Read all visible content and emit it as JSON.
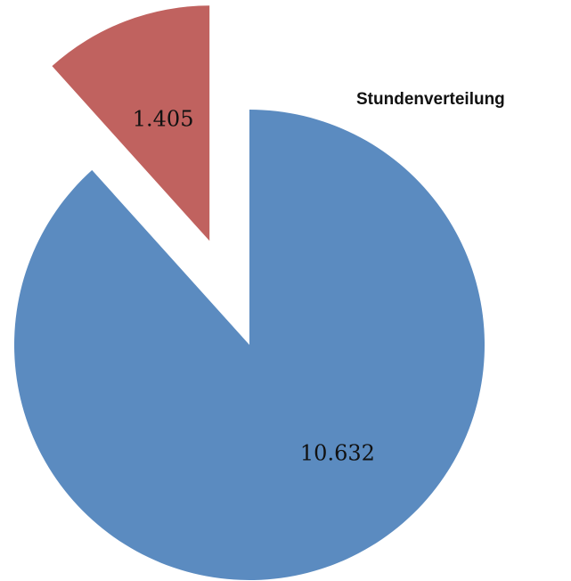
{
  "chart_data": {
    "type": "pie",
    "title": "Stundenverteilung",
    "values": [
      10632,
      1405
    ],
    "value_labels": [
      "10.632",
      "1.405"
    ],
    "colors": [
      "#5b8bc0",
      "#c0625f"
    ]
  }
}
